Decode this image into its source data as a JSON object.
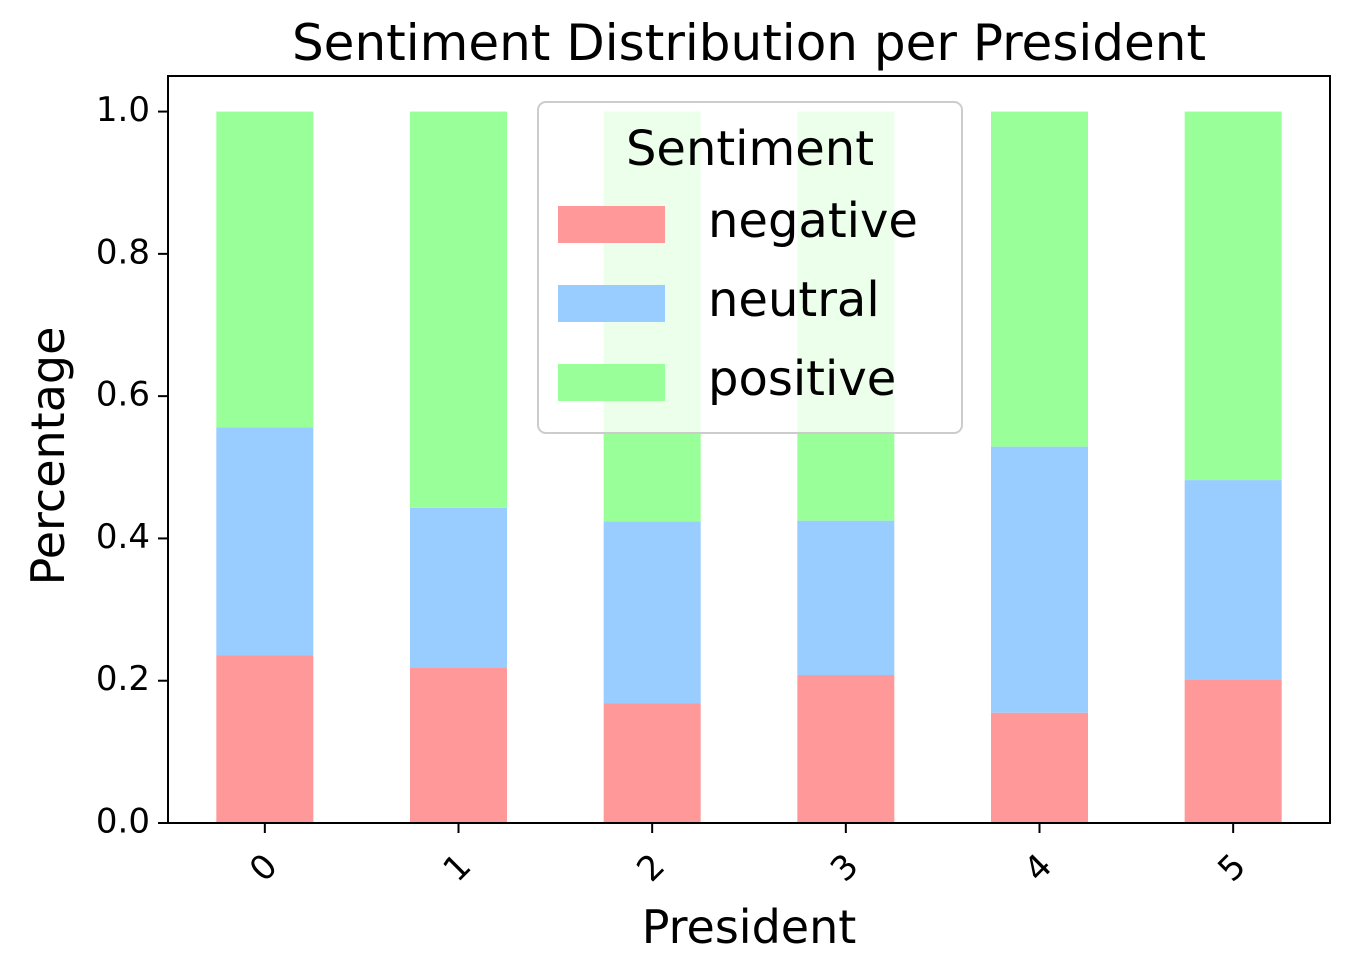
{
  "chart_data": {
    "type": "bar",
    "stacked": true,
    "title": "Sentiment Distribution per President",
    "xlabel": "President",
    "ylabel": "Percentage",
    "categories": [
      "0",
      "1",
      "2",
      "3",
      "4",
      "5"
    ],
    "ylim": [
      0,
      1.05
    ],
    "yticks": [
      "0.0",
      "0.2",
      "0.4",
      "0.6",
      "0.8",
      "1.0"
    ],
    "ytick_values": [
      0,
      0.2,
      0.4,
      0.6,
      0.8,
      1.0
    ],
    "grid": false,
    "legend": {
      "title": "Sentiment",
      "placement": "top-center"
    },
    "series": [
      {
        "name": "negative",
        "color": "#ff9999",
        "values": [
          0.236,
          0.219,
          0.168,
          0.208,
          0.155,
          0.201
        ]
      },
      {
        "name": "neutral",
        "color": "#99ccff",
        "values": [
          0.32,
          0.224,
          0.256,
          0.217,
          0.374,
          0.281
        ]
      },
      {
        "name": "positive",
        "color": "#99ff99",
        "values": [
          0.444,
          0.557,
          0.576,
          0.575,
          0.471,
          0.518
        ]
      }
    ]
  }
}
